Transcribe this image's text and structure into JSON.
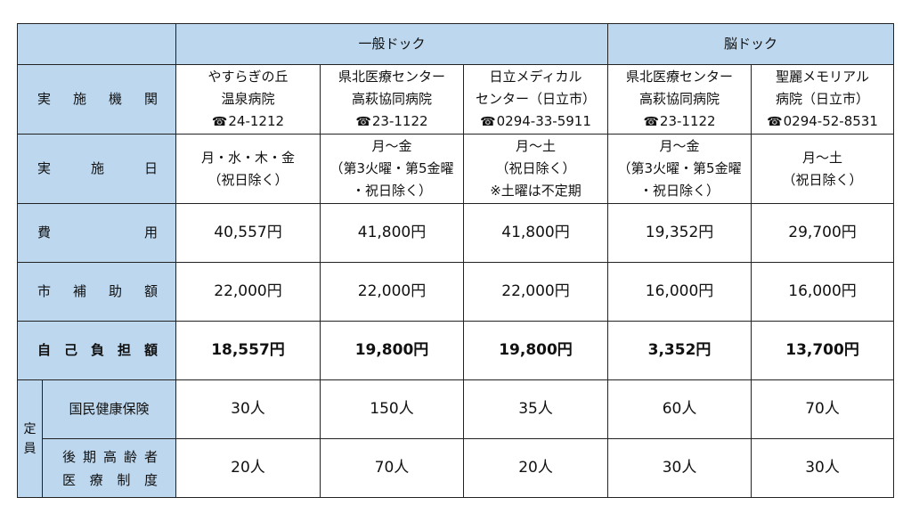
{
  "header": {
    "general_dock": "一般ドック",
    "brain_dock": "脳ドック"
  },
  "row_labels": {
    "institution": "実施機関",
    "dates": "実施日",
    "cost_a": "費",
    "cost_b": "用",
    "subsidy": "市補助額",
    "self_pay": "自己負担額",
    "capacity": "定員",
    "kokumin": "国民健康保険",
    "kouki_1": "後期高齢者",
    "kouki_2": "医療制度"
  },
  "columns": [
    {
      "name_lines": [
        "やすらぎの丘",
        "温泉病院"
      ],
      "tel": "24-1212",
      "days_lines": [
        "月・水・木・金",
        "（祝日除く）"
      ],
      "cost": "40,557円",
      "subsidy": "22,000円",
      "self_pay": "18,557円",
      "kokumin": "30人",
      "kouki": "20人"
    },
    {
      "name_lines": [
        "県北医療センター",
        "高萩協同病院"
      ],
      "tel": "23-1122",
      "days_lines": [
        "月～金",
        "（第3火曜・第5金曜",
        "・祝日除く）"
      ],
      "cost": "41,800円",
      "subsidy": "22,000円",
      "self_pay": "19,800円",
      "kokumin": "150人",
      "kouki": "70人"
    },
    {
      "name_lines": [
        "日立メディカル",
        "センター（日立市）"
      ],
      "tel": "0294-33-5911",
      "days_lines": [
        "月～土",
        "（祝日除く）",
        "※土曜は不定期"
      ],
      "cost": "41,800円",
      "subsidy": "22,000円",
      "self_pay": "19,800円",
      "kokumin": "35人",
      "kouki": "20人"
    },
    {
      "name_lines": [
        "県北医療センター",
        "高萩協同病院"
      ],
      "tel": "23-1122",
      "days_lines": [
        "月～金",
        "（第3火曜・第5金曜",
        "・祝日除く）"
      ],
      "cost": "19,352円",
      "subsidy": "16,000円",
      "self_pay": "3,352円",
      "kokumin": "60人",
      "kouki": "30人"
    },
    {
      "name_lines": [
        "聖麗メモリアル",
        "病院（日立市）"
      ],
      "tel": "0294-52-8531",
      "days_lines": [
        "月～土",
        "（祝日除く）"
      ],
      "cost": "29,700円",
      "subsidy": "16,000円",
      "self_pay": "13,700円",
      "kokumin": "70人",
      "kouki": "30人"
    }
  ],
  "icons": {
    "phone": "telephone-icon"
  },
  "colors": {
    "header_bg": "#bdd7ee",
    "border": "#222222"
  }
}
